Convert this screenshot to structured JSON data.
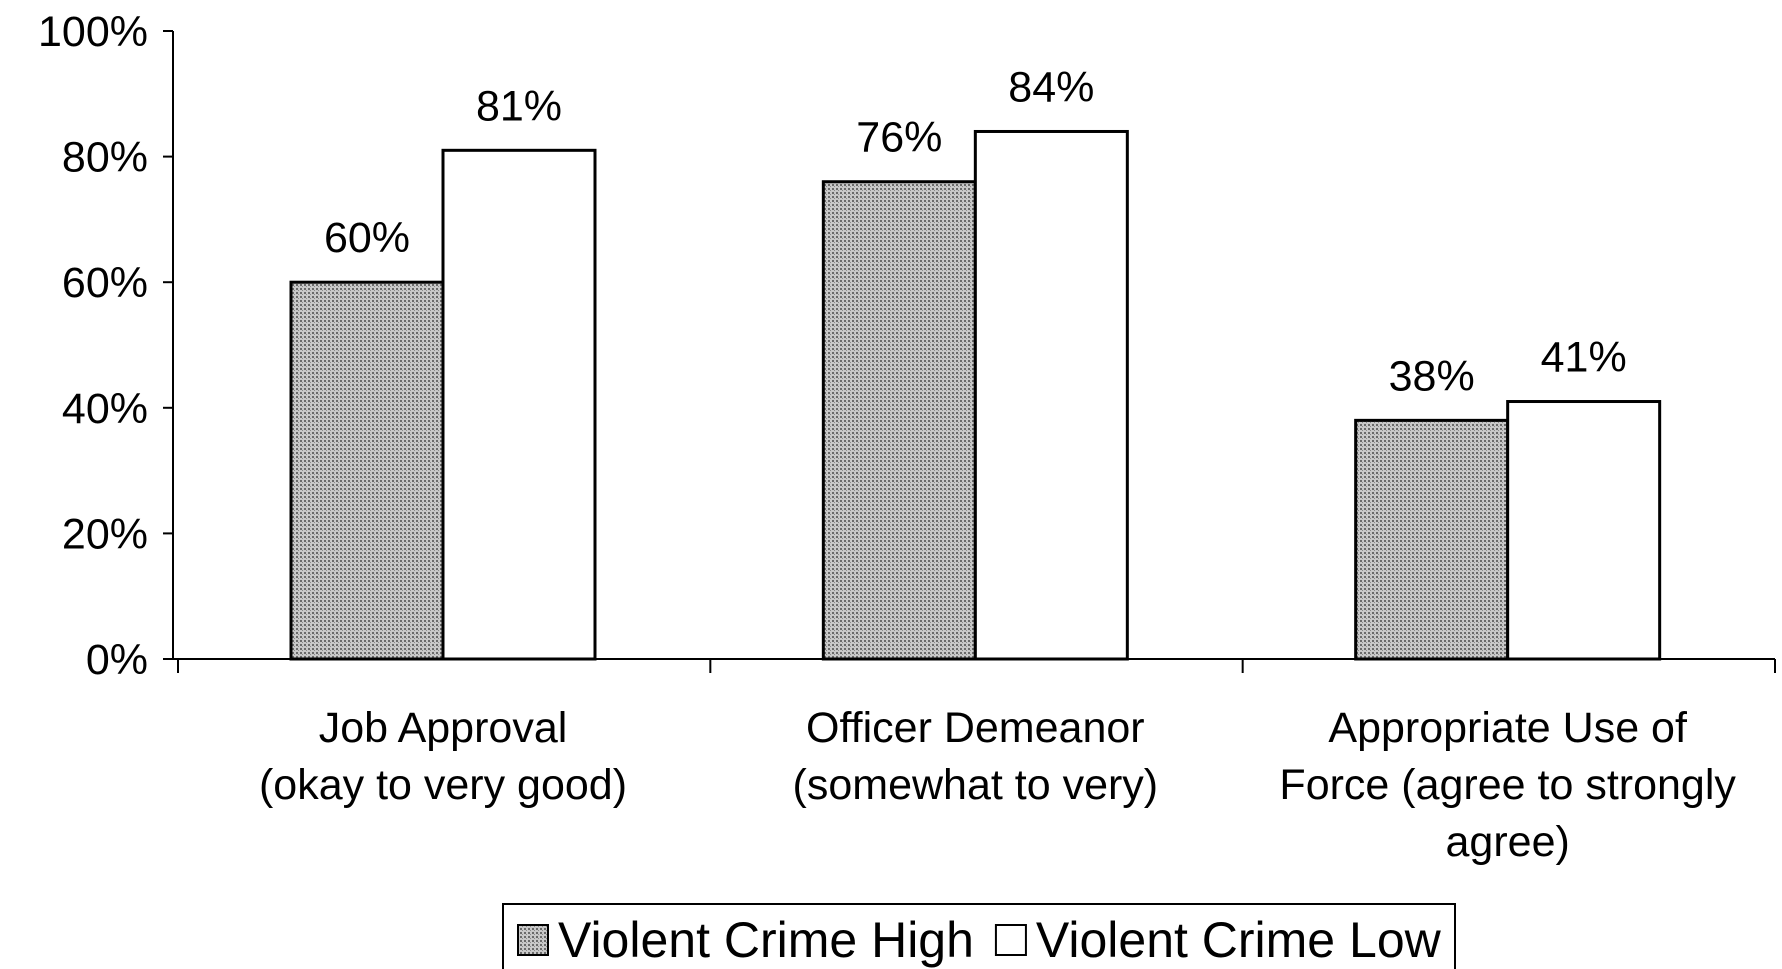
{
  "chart_data": {
    "type": "bar",
    "categories": [
      "Job Approval\n(okay to very good)",
      "Officer Demeanor\n(somewhat to very)",
      "Appropriate Use of\nForce (agree to strongly\nagree)"
    ],
    "series": [
      {
        "name": "Violent Crime High",
        "color": "#b0b0b0",
        "pattern": "dots",
        "values": [
          60,
          76,
          38
        ],
        "value_labels": [
          "60%",
          "76%",
          "38%"
        ]
      },
      {
        "name": "Violent Crime Low",
        "color": "#ffffff",
        "values": [
          81,
          84,
          41
        ],
        "value_labels": [
          "81%",
          "84%",
          "41%"
        ]
      }
    ],
    "ylim": [
      0,
      100
    ],
    "yticks": [
      {
        "value": 0,
        "label": "0%"
      },
      {
        "value": 20,
        "label": "20%"
      },
      {
        "value": 40,
        "label": "40%"
      },
      {
        "value": 60,
        "label": "60%"
      },
      {
        "value": 80,
        "label": "80%"
      },
      {
        "value": 100,
        "label": "100%"
      }
    ],
    "grid": false,
    "legend": "bottom"
  }
}
